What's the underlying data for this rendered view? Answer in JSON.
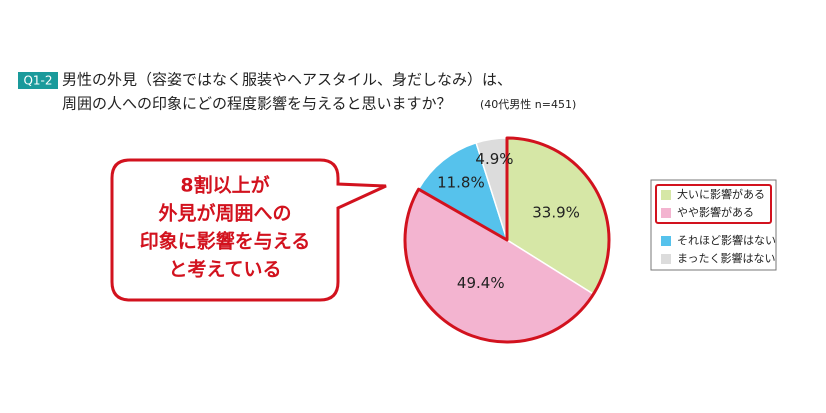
{
  "chart_data": {
    "type": "pie",
    "badge": "Q1-2",
    "title_lines": [
      "男性の外見（容姿ではなく服装やヘアスタイル、身だしなみ）は、",
      "周囲の人への印象にどの程度影響を与えると思いますか？"
    ],
    "note": "(40代男性 n=451)",
    "annotation_lines": [
      "8割以上が",
      "外見が周囲への",
      "印象に影響を与える",
      "と考えている"
    ],
    "categories": [
      "大いに影響がある",
      "やや影響がある",
      "それほど影響はない",
      "まったく影響はない"
    ],
    "values": [
      33.9,
      49.4,
      11.8,
      4.9
    ],
    "value_labels": [
      "33.9%",
      "49.4%",
      "11.8%",
      "4.9%"
    ],
    "colors": [
      "#d6e7a6",
      "#f3b4d0",
      "#56c2ec",
      "#dcdcdc"
    ],
    "highlight_color": "#d2121e"
  }
}
